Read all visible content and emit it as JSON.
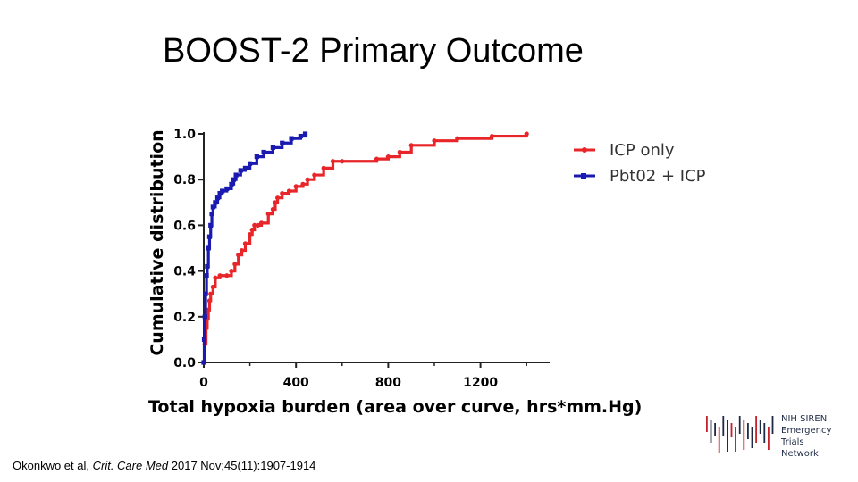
{
  "slide": {
    "title": "BOOST-2 Primary Outcome",
    "citation_prefix": "Okonkwo et al, ",
    "citation_journal": "Crit. Care Med",
    "citation_suffix": " 2017 Nov;45(11):1907-1914"
  },
  "logo": {
    "lines": [
      "NIH SIREN",
      "Emergency",
      "Trials",
      "Network"
    ]
  },
  "chart_data": {
    "type": "line",
    "title": "",
    "xlabel": "Total hypoxia burden (area over curve, hrs*mm.Hg)",
    "ylabel": "Cumulative distribution",
    "xlim": [
      0,
      1500
    ],
    "ylim": [
      0,
      1.0
    ],
    "x_ticks": [
      0,
      400,
      800,
      1200
    ],
    "x_tick_labels": [
      "0",
      "400",
      "800",
      "1200"
    ],
    "y_ticks": [
      0,
      0.2,
      0.4,
      0.6,
      0.8,
      1.0
    ],
    "y_tick_labels": [
      "0.0",
      "0.2",
      "0.4",
      "0.6",
      "0.8",
      "1.0"
    ],
    "grid": false,
    "legend_position": "right",
    "series": [
      {
        "name": "ICP only",
        "color": "#e8262a",
        "marker": "circle",
        "x": [
          0,
          5,
          10,
          15,
          20,
          25,
          30,
          40,
          50,
          70,
          100,
          120,
          135,
          150,
          165,
          180,
          200,
          210,
          220,
          235,
          250,
          280,
          300,
          310,
          320,
          340,
          370,
          400,
          430,
          450,
          480,
          520,
          560,
          600,
          750,
          800,
          850,
          900,
          1000,
          1100,
          1250,
          1400
        ],
        "y": [
          0.0,
          0.08,
          0.15,
          0.19,
          0.23,
          0.27,
          0.3,
          0.33,
          0.37,
          0.38,
          0.38,
          0.4,
          0.43,
          0.47,
          0.49,
          0.52,
          0.56,
          0.58,
          0.6,
          0.6,
          0.61,
          0.65,
          0.67,
          0.7,
          0.72,
          0.74,
          0.75,
          0.77,
          0.78,
          0.8,
          0.82,
          0.85,
          0.88,
          0.88,
          0.89,
          0.9,
          0.92,
          0.95,
          0.97,
          0.98,
          0.99,
          1.0
        ]
      },
      {
        "name": "Pbt02 + ICP",
        "color": "#1a1ab0",
        "marker": "square",
        "x": [
          0,
          2,
          5,
          8,
          12,
          15,
          20,
          25,
          30,
          35,
          40,
          50,
          60,
          70,
          80,
          100,
          120,
          130,
          140,
          160,
          180,
          200,
          230,
          260,
          300,
          340,
          380,
          420,
          440
        ],
        "y": [
          0.0,
          0.1,
          0.2,
          0.3,
          0.38,
          0.42,
          0.5,
          0.55,
          0.6,
          0.65,
          0.68,
          0.7,
          0.72,
          0.74,
          0.75,
          0.76,
          0.78,
          0.8,
          0.82,
          0.84,
          0.85,
          0.87,
          0.9,
          0.92,
          0.94,
          0.96,
          0.98,
          0.99,
          1.0
        ]
      }
    ]
  }
}
